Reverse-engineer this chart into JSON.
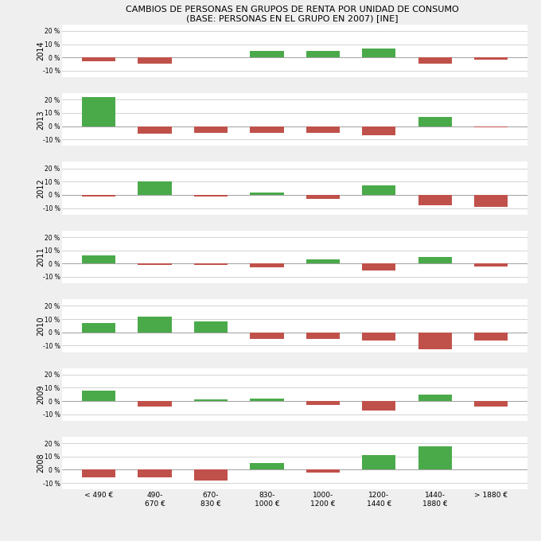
{
  "title_line1": "CAMBIOS DE PERSONAS EN GRUPOS DE RENTA POR UNIDAD DE CONSUMO",
  "title_line2": "(BASE: PERSONAS EN EL GRUPO EN 2007) [INE]",
  "categories": [
    "< 490 €",
    "490-\n670 €",
    "670-\n830 €",
    "830-\n1000 €",
    "1000-\n1200 €",
    "1200-\n1440 €",
    "1440-\n1880 €",
    "> 1880 €"
  ],
  "years": [
    2014,
    2013,
    2012,
    2011,
    2010,
    2009,
    2008
  ],
  "data": {
    "2014": [
      -3,
      -5,
      0,
      5,
      5,
      7,
      -5,
      -2
    ],
    "2013": [
      22,
      -6,
      -5,
      -5,
      -5,
      -7,
      7,
      -1
    ],
    "2012": [
      -1,
      10,
      -1,
      2,
      -3,
      7,
      -8,
      -9
    ],
    "2011": [
      6,
      -1,
      -1,
      -3,
      3,
      -5,
      5,
      -2
    ],
    "2010": [
      7,
      12,
      8,
      -5,
      -5,
      -6,
      -13,
      -6
    ],
    "2009": [
      8,
      -4,
      1,
      2,
      -3,
      -7,
      5,
      -4
    ],
    "2008": [
      -6,
      -6,
      -8,
      5,
      -2,
      11,
      18,
      0
    ]
  },
  "ylim": [
    -15,
    25
  ],
  "yticks": [
    -10,
    0,
    10,
    20
  ],
  "ytick_labels": [
    "-10 %",
    "0 %",
    "10 %",
    "20 %"
  ],
  "color_positive": "#4aaa4a",
  "color_negative": "#c0514a",
  "background_color": "#efefef",
  "panel_background": "#ffffff",
  "grid_color": "#cccccc",
  "bar_width": 0.6
}
